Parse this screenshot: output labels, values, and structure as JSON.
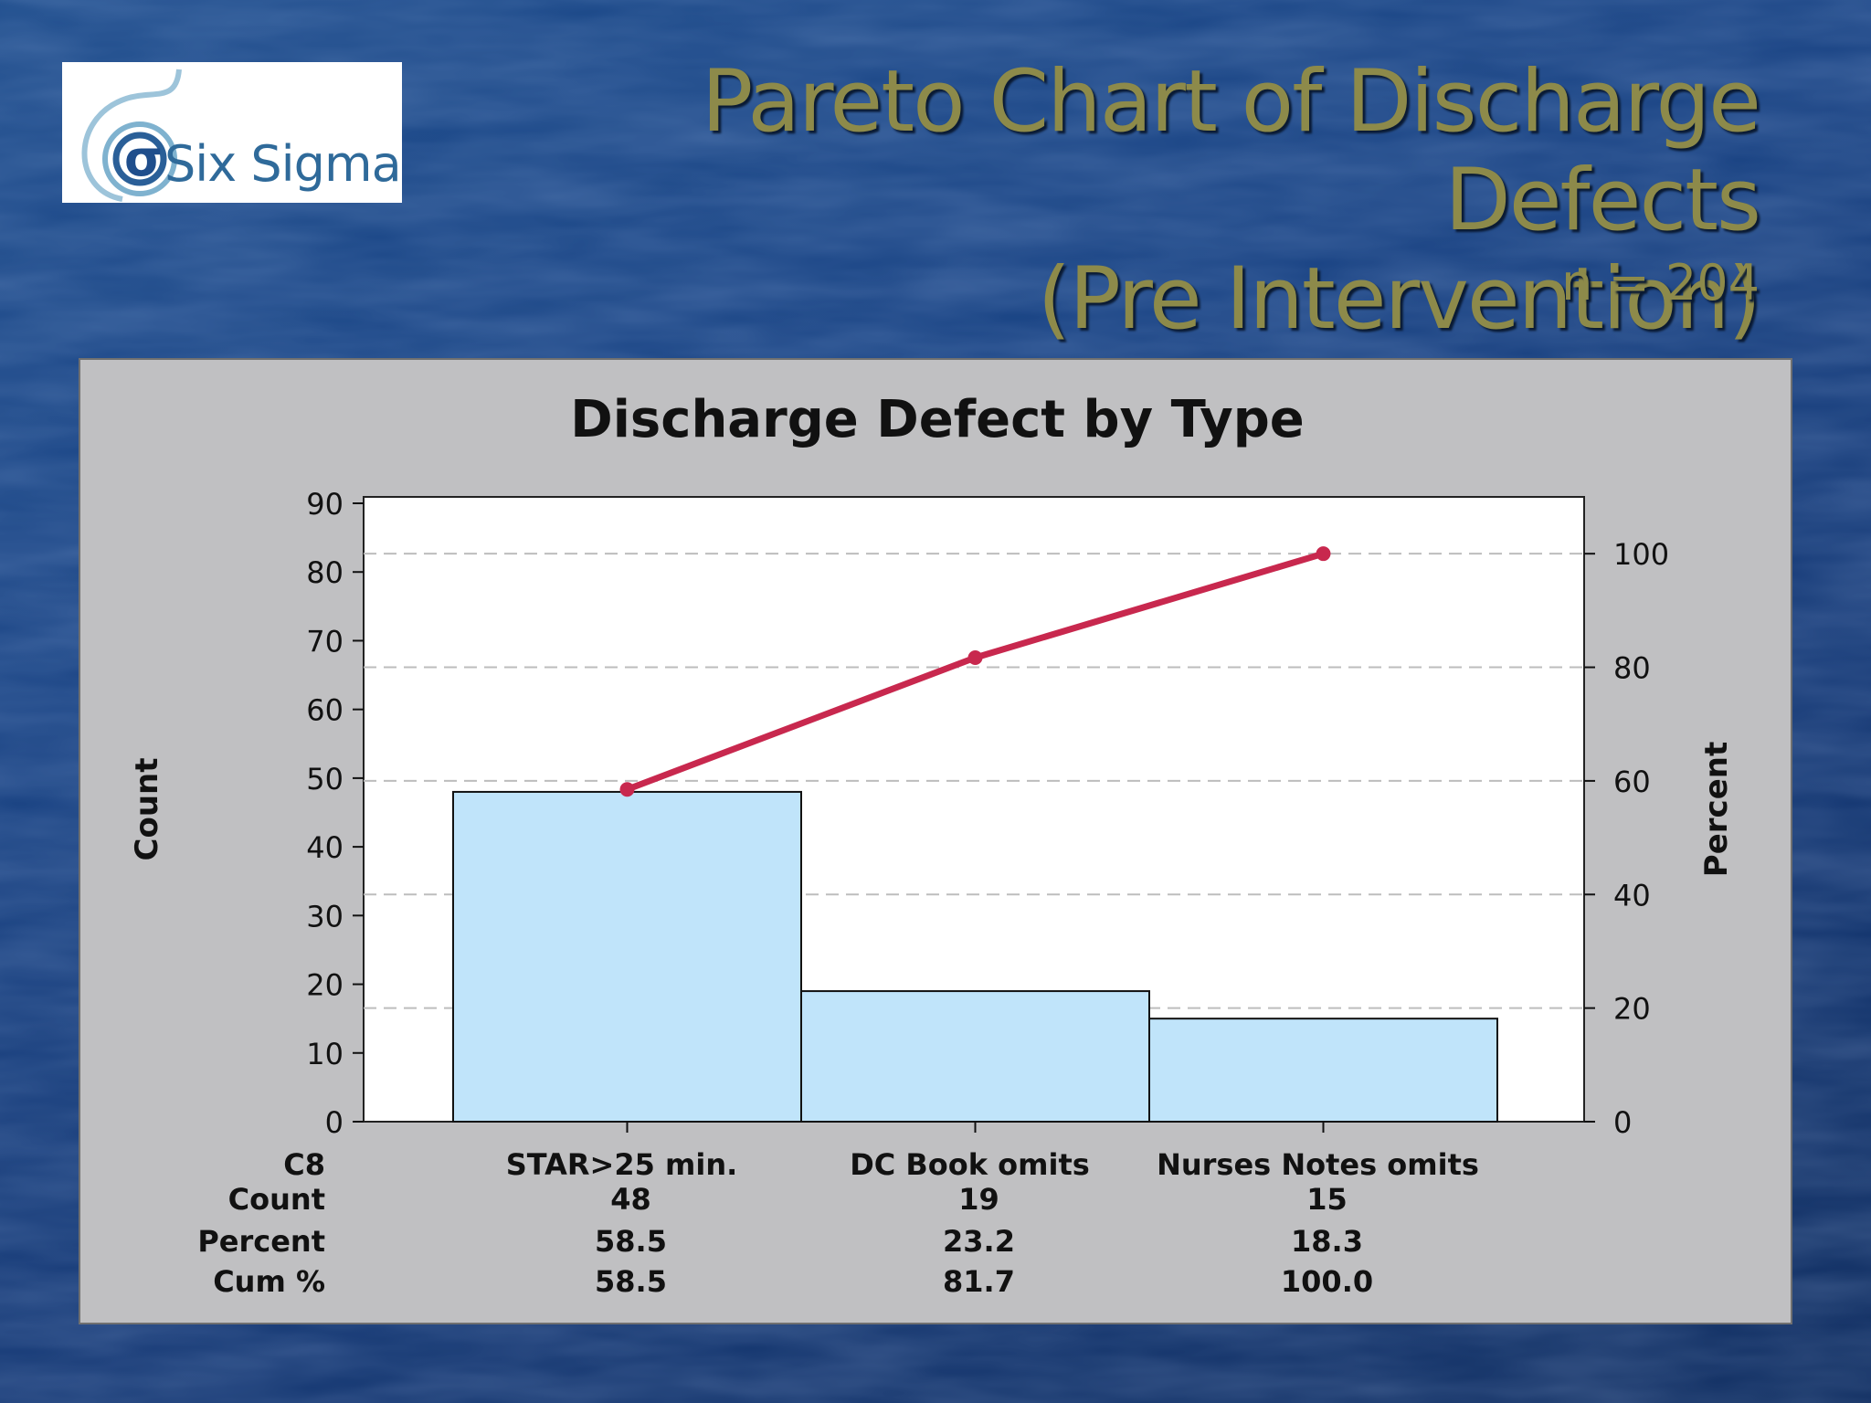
{
  "slide": {
    "title_line1": "Pareto Chart of Discharge Defects",
    "title_line2": "(Pre Intervention)",
    "subtitle": "n = 204",
    "logo_text": "Six Sigma",
    "logo_icon": "sigma-spiral-icon"
  },
  "colors": {
    "bar_fill": "#c0e4fa",
    "cum_line": "#c8284e",
    "title": "#8d8a4a",
    "panel_bg": "#c0c0c2"
  },
  "chart_data": {
    "type": "bar",
    "title": "Discharge Defect by Type",
    "ylabel": "Count",
    "y2label": "Percent",
    "ylim": [
      0,
      90
    ],
    "y_ticks": [
      0,
      10,
      20,
      30,
      40,
      50,
      60,
      70,
      80,
      90
    ],
    "y2lim": [
      0,
      110
    ],
    "y2_ticks": [
      0,
      20,
      40,
      60,
      80,
      100
    ],
    "grid": "dashed horizontal at percent ticks",
    "categories": [
      "STAR>25 min.",
      "DC Book omits",
      "Nurses Notes omits"
    ],
    "series": [
      {
        "type": "bar",
        "axis": "left",
        "values": [
          48,
          19,
          15
        ]
      },
      {
        "type": "line",
        "axis": "right",
        "values": [
          58.5,
          81.7,
          100.0
        ]
      }
    ],
    "table": {
      "row_labels": [
        "C8",
        "Count",
        "Percent",
        "Cum %"
      ],
      "count": [
        "48",
        "19",
        "15"
      ],
      "percent": [
        "58.5",
        "23.2",
        "18.3"
      ],
      "cum": [
        "58.5",
        "81.7",
        "100.0"
      ]
    }
  }
}
